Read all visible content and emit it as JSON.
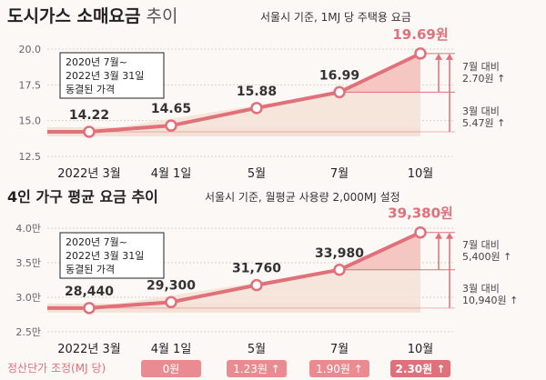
{
  "colors": {
    "line": "#e0707a",
    "band": "#f4e2d6",
    "shade": "#f6c7c2",
    "box_border": "#222222",
    "badge": "#ea8a91",
    "badge_dark": "#e0707a",
    "text": "#222222"
  },
  "chart_data": [
    {
      "type": "line",
      "title": "도시가스 소매요금",
      "title_suffix": "추이",
      "subtitle": "서울시 기준, 1MJ 당 주택용 요금",
      "categories": [
        "2022년 3월",
        "4월 1일",
        "5월",
        "7월",
        "10월"
      ],
      "values": [
        14.22,
        14.65,
        15.88,
        16.99,
        19.69
      ],
      "value_labels": [
        "14.22",
        "14.65",
        "15.88",
        "16.99",
        "19.69원"
      ],
      "ylim": [
        12.5,
        20.0
      ],
      "yticks": [
        "12.5",
        "15.0",
        "17.5",
        "20.0"
      ],
      "ytick_values": [
        12.5,
        15.0,
        17.5,
        20.0
      ],
      "grid": true,
      "note": [
        "2020년 7월~",
        "2022년 3월 31일",
        "동결된 가격"
      ],
      "annotations": [
        {
          "lines": [
            "7월 대비",
            "2.70원 ↑"
          ],
          "from_index": 3
        },
        {
          "lines": [
            "3월 대비",
            "5.47원 ↑"
          ],
          "from_index": 0
        }
      ]
    },
    {
      "type": "line",
      "title": "4인 가구 평균 요금 추이",
      "title_suffix": "",
      "subtitle": "서울시 기준, 월평균 사용량 2,000MJ 설정",
      "categories": [
        "2022년 3월",
        "4월 1일",
        "5월",
        "7월",
        "10월"
      ],
      "values": [
        28440,
        29300,
        31760,
        33980,
        39380
      ],
      "value_labels": [
        "28,440",
        "29,300",
        "31,760",
        "33,980",
        "39,380원"
      ],
      "ylim": [
        25000,
        40000
      ],
      "yticks": [
        "2.5만",
        "3.0만",
        "3.5만",
        "4.0만"
      ],
      "ytick_values": [
        25000,
        30000,
        35000,
        40000
      ],
      "grid": true,
      "note": [
        "2020년 7월~",
        "2022년 3월 31일",
        "동결된 가격"
      ],
      "annotations": [
        {
          "lines": [
            "7월 대비",
            "5,400원 ↑"
          ],
          "from_index": 3
        },
        {
          "lines": [
            "3월 대비",
            "10,940원 ↑"
          ],
          "from_index": 0
        }
      ]
    }
  ],
  "settlement": {
    "label": "정산단가 조정(MJ 당)",
    "badges": [
      "0원",
      "1.23원 ↑",
      "1.90원 ↑",
      "2.30원 ↑"
    ]
  }
}
